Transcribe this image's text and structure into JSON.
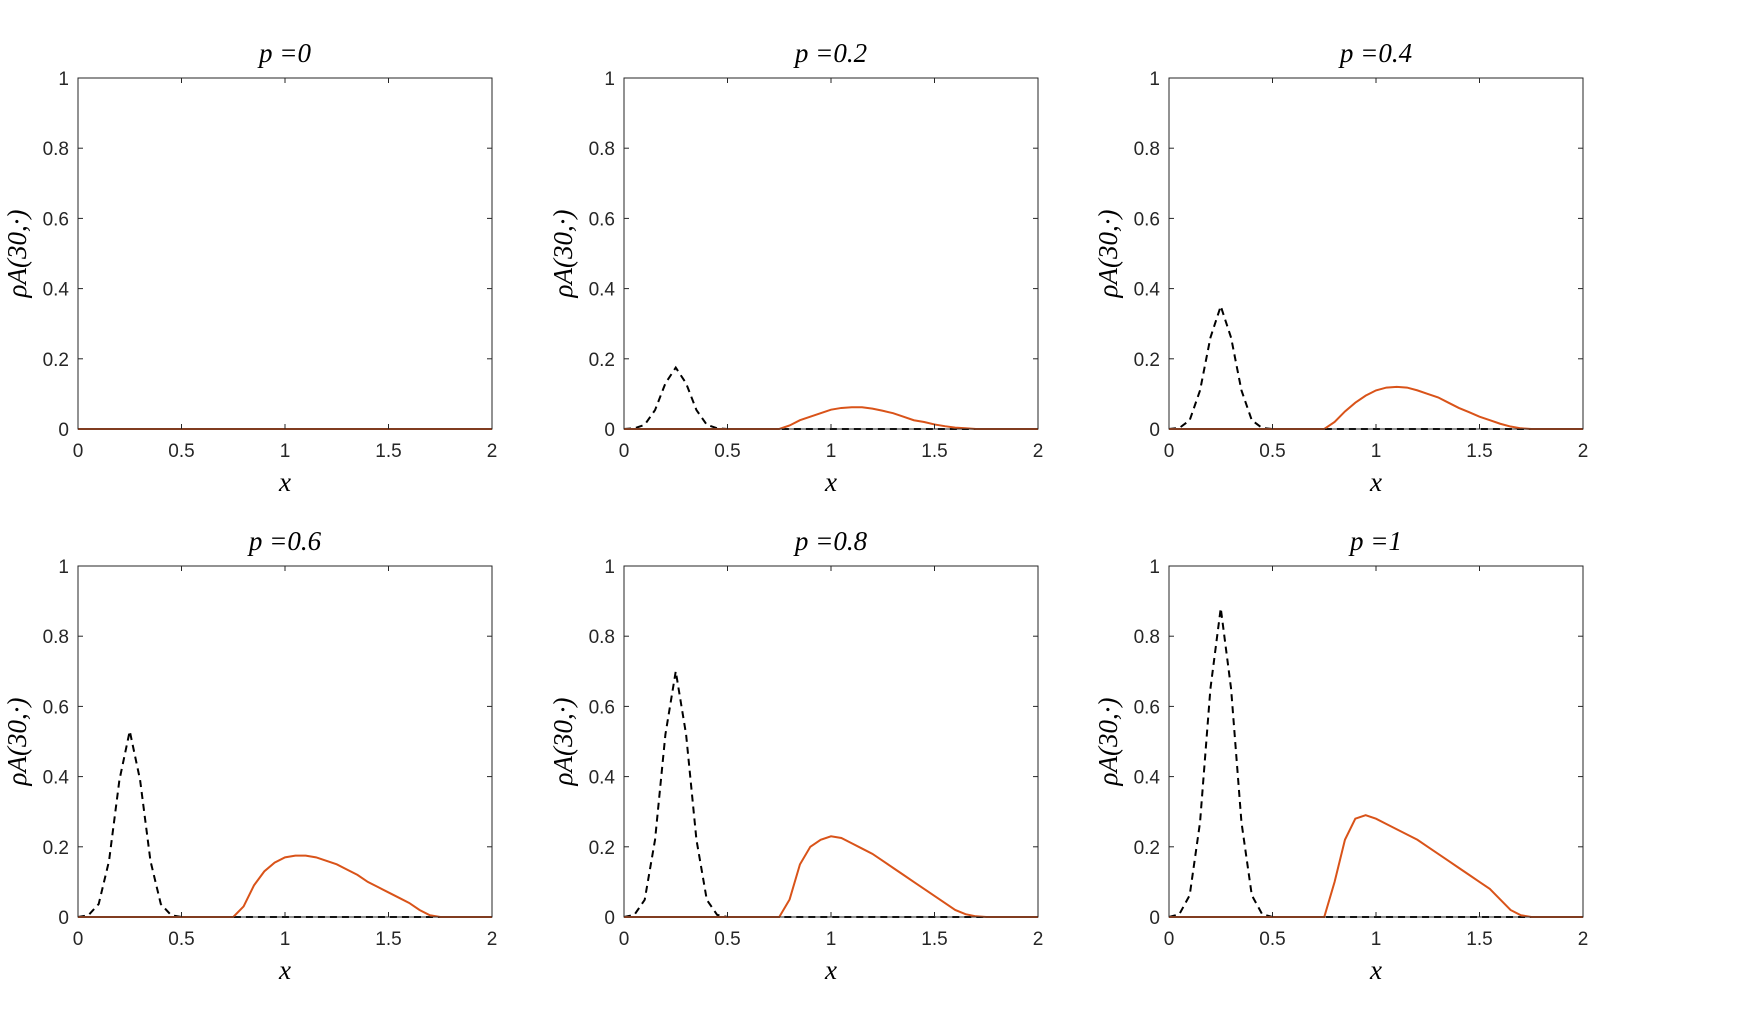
{
  "chart_data": [
    {
      "type": "line",
      "title": "p =0",
      "xlabel": "x",
      "ylabel": "ρA(30,·)",
      "x": [
        0,
        0.05,
        0.1,
        0.15,
        0.2,
        0.25,
        0.3,
        0.35,
        0.4,
        0.45,
        0.5,
        0.55,
        0.6,
        0.65,
        0.7,
        0.75,
        0.8,
        0.85,
        0.9,
        0.95,
        1,
        1.05,
        1.1,
        1.15,
        1.2,
        1.25,
        1.3,
        1.35,
        1.4,
        1.45,
        1.5,
        1.55,
        1.6,
        1.65,
        1.7,
        1.75,
        1.8,
        1.85,
        1.9,
        1.95,
        2
      ],
      "series": [
        {
          "color": "#000000",
          "style": "dashed",
          "values": [
            0,
            0,
            0,
            0,
            0,
            0,
            0,
            0,
            0,
            0,
            0,
            0,
            0,
            0,
            0,
            0,
            0,
            0,
            0,
            0,
            0,
            0,
            0,
            0,
            0,
            0,
            0,
            0,
            0,
            0,
            0,
            0,
            0,
            0,
            0,
            0,
            0,
            0,
            0,
            0,
            0
          ]
        },
        {
          "color": "#d95319",
          "style": "solid",
          "values": [
            0,
            0,
            0,
            0,
            0,
            0,
            0,
            0,
            0,
            0,
            0,
            0,
            0,
            0,
            0,
            0,
            0,
            0,
            0,
            0,
            0,
            0,
            0,
            0,
            0,
            0,
            0,
            0,
            0,
            0,
            0,
            0,
            0,
            0,
            0,
            0,
            0,
            0,
            0,
            0,
            0
          ]
        }
      ],
      "xlim": [
        0,
        2
      ],
      "ylim": [
        0,
        1
      ],
      "xticks": [
        0,
        0.5,
        1,
        1.5,
        2
      ],
      "yticks": [
        0,
        0.2,
        0.4,
        0.6,
        0.8,
        1
      ]
    },
    {
      "type": "line",
      "title": "p =0.2",
      "xlabel": "x",
      "ylabel": "ρA(30,·)",
      "x": [
        0,
        0.05,
        0.1,
        0.15,
        0.2,
        0.25,
        0.3,
        0.35,
        0.4,
        0.45,
        0.5,
        0.55,
        0.6,
        0.65,
        0.7,
        0.75,
        0.8,
        0.85,
        0.9,
        0.95,
        1,
        1.05,
        1.1,
        1.15,
        1.2,
        1.25,
        1.3,
        1.35,
        1.4,
        1.45,
        1.5,
        1.55,
        1.6,
        1.65,
        1.7,
        1.75,
        1.8,
        1.85,
        1.9,
        1.95,
        2
      ],
      "series": [
        {
          "color": "#000000",
          "style": "dashed",
          "values": [
            0,
            0.002,
            0.012,
            0.054,
            0.13,
            0.175,
            0.13,
            0.054,
            0.012,
            0.002,
            0,
            0,
            0,
            0,
            0,
            0,
            0,
            0,
            0,
            0,
            0,
            0,
            0,
            0,
            0,
            0,
            0,
            0,
            0,
            0,
            0,
            0,
            0,
            0,
            0,
            0,
            0,
            0,
            0,
            0,
            0
          ]
        },
        {
          "color": "#d95319",
          "style": "solid",
          "values": [
            0,
            0,
            0,
            0,
            0,
            0,
            0,
            0,
            0,
            0,
            0,
            0,
            0,
            0,
            0,
            0,
            0.01,
            0.025,
            0.035,
            0.045,
            0.055,
            0.06,
            0.062,
            0.062,
            0.058,
            0.052,
            0.045,
            0.035,
            0.025,
            0.02,
            0.013,
            0.008,
            0.004,
            0.002,
            0,
            0,
            0,
            0,
            0,
            0,
            0
          ]
        }
      ],
      "xlim": [
        0,
        2
      ],
      "ylim": [
        0,
        1
      ],
      "xticks": [
        0,
        0.5,
        1,
        1.5,
        2
      ],
      "yticks": [
        0,
        0.2,
        0.4,
        0.6,
        0.8,
        1
      ]
    },
    {
      "type": "line",
      "title": "p =0.4",
      "xlabel": "x",
      "ylabel": "ρA(30,·)",
      "x": [
        0,
        0.05,
        0.1,
        0.15,
        0.2,
        0.25,
        0.3,
        0.35,
        0.4,
        0.45,
        0.5,
        0.55,
        0.6,
        0.65,
        0.7,
        0.75,
        0.8,
        0.85,
        0.9,
        0.95,
        1,
        1.05,
        1.1,
        1.15,
        1.2,
        1.25,
        1.3,
        1.35,
        1.4,
        1.45,
        1.5,
        1.55,
        1.6,
        1.65,
        1.7,
        1.75,
        1.8,
        1.85,
        1.9,
        1.95,
        2
      ],
      "series": [
        {
          "color": "#000000",
          "style": "dashed",
          "values": [
            0,
            0.003,
            0.025,
            0.11,
            0.26,
            0.35,
            0.26,
            0.11,
            0.025,
            0.003,
            0,
            0,
            0,
            0,
            0,
            0,
            0,
            0,
            0,
            0,
            0,
            0,
            0,
            0,
            0,
            0,
            0,
            0,
            0,
            0,
            0,
            0,
            0,
            0,
            0,
            0,
            0,
            0,
            0,
            0,
            0
          ]
        },
        {
          "color": "#d95319",
          "style": "solid",
          "values": [
            0,
            0,
            0,
            0,
            0,
            0,
            0,
            0,
            0,
            0,
            0,
            0,
            0,
            0,
            0,
            0,
            0.02,
            0.05,
            0.075,
            0.095,
            0.11,
            0.118,
            0.12,
            0.118,
            0.11,
            0.1,
            0.09,
            0.075,
            0.06,
            0.048,
            0.035,
            0.025,
            0.015,
            0.007,
            0.002,
            0,
            0,
            0,
            0,
            0,
            0
          ]
        }
      ],
      "xlim": [
        0,
        2
      ],
      "ylim": [
        0,
        1
      ],
      "xticks": [
        0,
        0.5,
        1,
        1.5,
        2
      ],
      "yticks": [
        0,
        0.2,
        0.4,
        0.6,
        0.8,
        1
      ]
    },
    {
      "type": "line",
      "title": "p =0.6",
      "xlabel": "x",
      "ylabel": "ρA(30,·)",
      "x": [
        0,
        0.05,
        0.1,
        0.15,
        0.2,
        0.25,
        0.3,
        0.35,
        0.4,
        0.45,
        0.5,
        0.55,
        0.6,
        0.65,
        0.7,
        0.75,
        0.8,
        0.85,
        0.9,
        0.95,
        1,
        1.05,
        1.1,
        1.15,
        1.2,
        1.25,
        1.3,
        1.35,
        1.4,
        1.45,
        1.5,
        1.55,
        1.6,
        1.65,
        1.7,
        1.75,
        1.8,
        1.85,
        1.9,
        1.95,
        2
      ],
      "series": [
        {
          "color": "#000000",
          "style": "dashed",
          "values": [
            0,
            0.005,
            0.037,
            0.16,
            0.39,
            0.53,
            0.39,
            0.16,
            0.037,
            0.005,
            0,
            0,
            0,
            0,
            0,
            0,
            0,
            0,
            0,
            0,
            0,
            0,
            0,
            0,
            0,
            0,
            0,
            0,
            0,
            0,
            0,
            0,
            0,
            0,
            0,
            0,
            0,
            0,
            0,
            0,
            0
          ]
        },
        {
          "color": "#d95319",
          "style": "solid",
          "values": [
            0,
            0,
            0,
            0,
            0,
            0,
            0,
            0,
            0,
            0,
            0,
            0,
            0,
            0,
            0,
            0,
            0.03,
            0.09,
            0.13,
            0.155,
            0.17,
            0.175,
            0.175,
            0.17,
            0.16,
            0.15,
            0.135,
            0.12,
            0.1,
            0.085,
            0.07,
            0.055,
            0.04,
            0.02,
            0.005,
            0,
            0,
            0,
            0,
            0,
            0
          ]
        }
      ],
      "xlim": [
        0,
        2
      ],
      "ylim": [
        0,
        1
      ],
      "xticks": [
        0,
        0.5,
        1,
        1.5,
        2
      ],
      "yticks": [
        0,
        0.2,
        0.4,
        0.6,
        0.8,
        1
      ]
    },
    {
      "type": "line",
      "title": "p =0.8",
      "xlabel": "x",
      "ylabel": "ρA(30,·)",
      "x": [
        0,
        0.05,
        0.1,
        0.15,
        0.2,
        0.25,
        0.3,
        0.35,
        0.4,
        0.45,
        0.5,
        0.55,
        0.6,
        0.65,
        0.7,
        0.75,
        0.8,
        0.85,
        0.9,
        0.95,
        1,
        1.05,
        1.1,
        1.15,
        1.2,
        1.25,
        1.3,
        1.35,
        1.4,
        1.45,
        1.5,
        1.55,
        1.6,
        1.65,
        1.7,
        1.75,
        1.8,
        1.85,
        1.9,
        1.95,
        2
      ],
      "series": [
        {
          "color": "#000000",
          "style": "dashed",
          "values": [
            0,
            0.006,
            0.049,
            0.22,
            0.52,
            0.7,
            0.52,
            0.22,
            0.049,
            0.006,
            0,
            0,
            0,
            0,
            0,
            0,
            0,
            0,
            0,
            0,
            0,
            0,
            0,
            0,
            0,
            0,
            0,
            0,
            0,
            0,
            0,
            0,
            0,
            0,
            0,
            0,
            0,
            0,
            0,
            0,
            0
          ]
        },
        {
          "color": "#d95319",
          "style": "solid",
          "values": [
            0,
            0,
            0,
            0,
            0,
            0,
            0,
            0,
            0,
            0,
            0,
            0,
            0,
            0,
            0,
            0,
            0.05,
            0.15,
            0.2,
            0.22,
            0.23,
            0.225,
            0.21,
            0.195,
            0.18,
            0.16,
            0.14,
            0.12,
            0.1,
            0.08,
            0.06,
            0.04,
            0.02,
            0.008,
            0.002,
            0,
            0,
            0,
            0,
            0,
            0
          ]
        }
      ],
      "xlim": [
        0,
        2
      ],
      "ylim": [
        0,
        1
      ],
      "xticks": [
        0,
        0.5,
        1,
        1.5,
        2
      ],
      "yticks": [
        0,
        0.2,
        0.4,
        0.6,
        0.8,
        1
      ]
    },
    {
      "type": "line",
      "title": "p =1",
      "xlabel": "x",
      "ylabel": "ρA(30,·)",
      "x": [
        0,
        0.05,
        0.1,
        0.15,
        0.2,
        0.25,
        0.3,
        0.35,
        0.4,
        0.45,
        0.5,
        0.55,
        0.6,
        0.65,
        0.7,
        0.75,
        0.8,
        0.85,
        0.9,
        0.95,
        1,
        1.05,
        1.1,
        1.15,
        1.2,
        1.25,
        1.3,
        1.35,
        1.4,
        1.45,
        1.5,
        1.55,
        1.6,
        1.65,
        1.7,
        1.75,
        1.8,
        1.85,
        1.9,
        1.95,
        2
      ],
      "series": [
        {
          "color": "#000000",
          "style": "dashed",
          "values": [
            0,
            0.008,
            0.062,
            0.27,
            0.65,
            0.88,
            0.65,
            0.27,
            0.062,
            0.008,
            0,
            0,
            0,
            0,
            0,
            0,
            0,
            0,
            0,
            0,
            0,
            0,
            0,
            0,
            0,
            0,
            0,
            0,
            0,
            0,
            0,
            0,
            0,
            0,
            0,
            0,
            0,
            0,
            0,
            0,
            0
          ]
        },
        {
          "color": "#d95319",
          "style": "solid",
          "values": [
            0,
            0,
            0,
            0,
            0,
            0,
            0,
            0,
            0,
            0,
            0,
            0,
            0,
            0,
            0,
            0,
            0.1,
            0.22,
            0.28,
            0.29,
            0.28,
            0.265,
            0.25,
            0.235,
            0.22,
            0.2,
            0.18,
            0.16,
            0.14,
            0.12,
            0.1,
            0.08,
            0.05,
            0.02,
            0.005,
            0,
            0,
            0,
            0,
            0,
            0
          ]
        }
      ],
      "xlim": [
        0,
        2
      ],
      "ylim": [
        0,
        1
      ],
      "xticks": [
        0,
        0.5,
        1,
        1.5,
        2
      ],
      "yticks": [
        0,
        0.2,
        0.4,
        0.6,
        0.8,
        1
      ]
    }
  ]
}
